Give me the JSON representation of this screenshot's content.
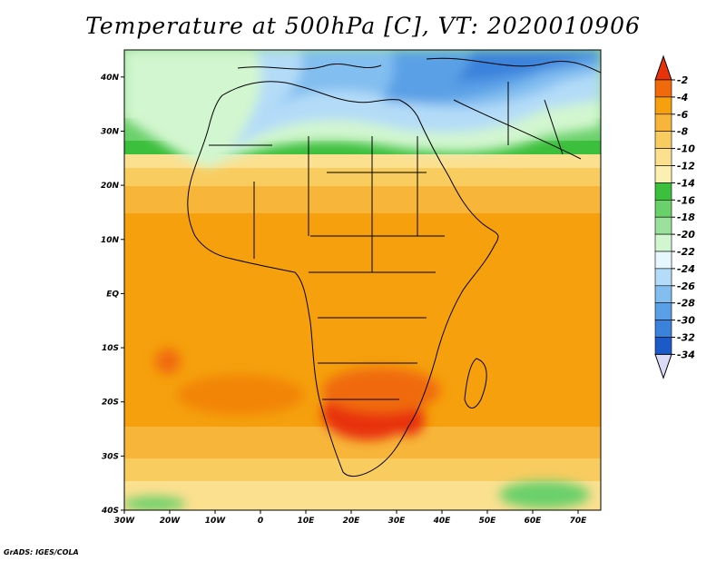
{
  "title": "Temperature at 500hPa [C], VT: 2020010906",
  "credit": "GrADS: IGES/COLA",
  "map": {
    "variable": "Temperature at 500hPa",
    "units": "C",
    "valid_time": "2020010906",
    "lon_range": [
      -30,
      75
    ],
    "lat_range": [
      -40,
      45
    ],
    "lon_ticks": [
      "30W",
      "20W",
      "10W",
      "0",
      "10E",
      "20E",
      "30E",
      "40E",
      "50E",
      "60E",
      "70E"
    ],
    "lat_ticks": [
      "40S",
      "30S",
      "20S",
      "10S",
      "EQ",
      "10N",
      "20N",
      "30N",
      "40N"
    ]
  },
  "colorbar": {
    "levels": [
      "-2",
      "-4",
      "-6",
      "-8",
      "-10",
      "-12",
      "-14",
      "-16",
      "-18",
      "-20",
      "-22",
      "-24",
      "-26",
      "-28",
      "-30",
      "-32",
      "-34"
    ],
    "colors": [
      "#e8320a",
      "#f06a0c",
      "#f5a00c",
      "#f7b63a",
      "#f9cc60",
      "#fbe090",
      "#fbf0b0",
      "#3cbf3c",
      "#6ad06a",
      "#9be09b",
      "#d2f6cf",
      "#e6f7ff",
      "#b4dcf8",
      "#82bef0",
      "#5aa0e6",
      "#3a82dc",
      "#1c5ac8",
      "#0c32a0",
      "#0a1a78"
    ]
  }
}
